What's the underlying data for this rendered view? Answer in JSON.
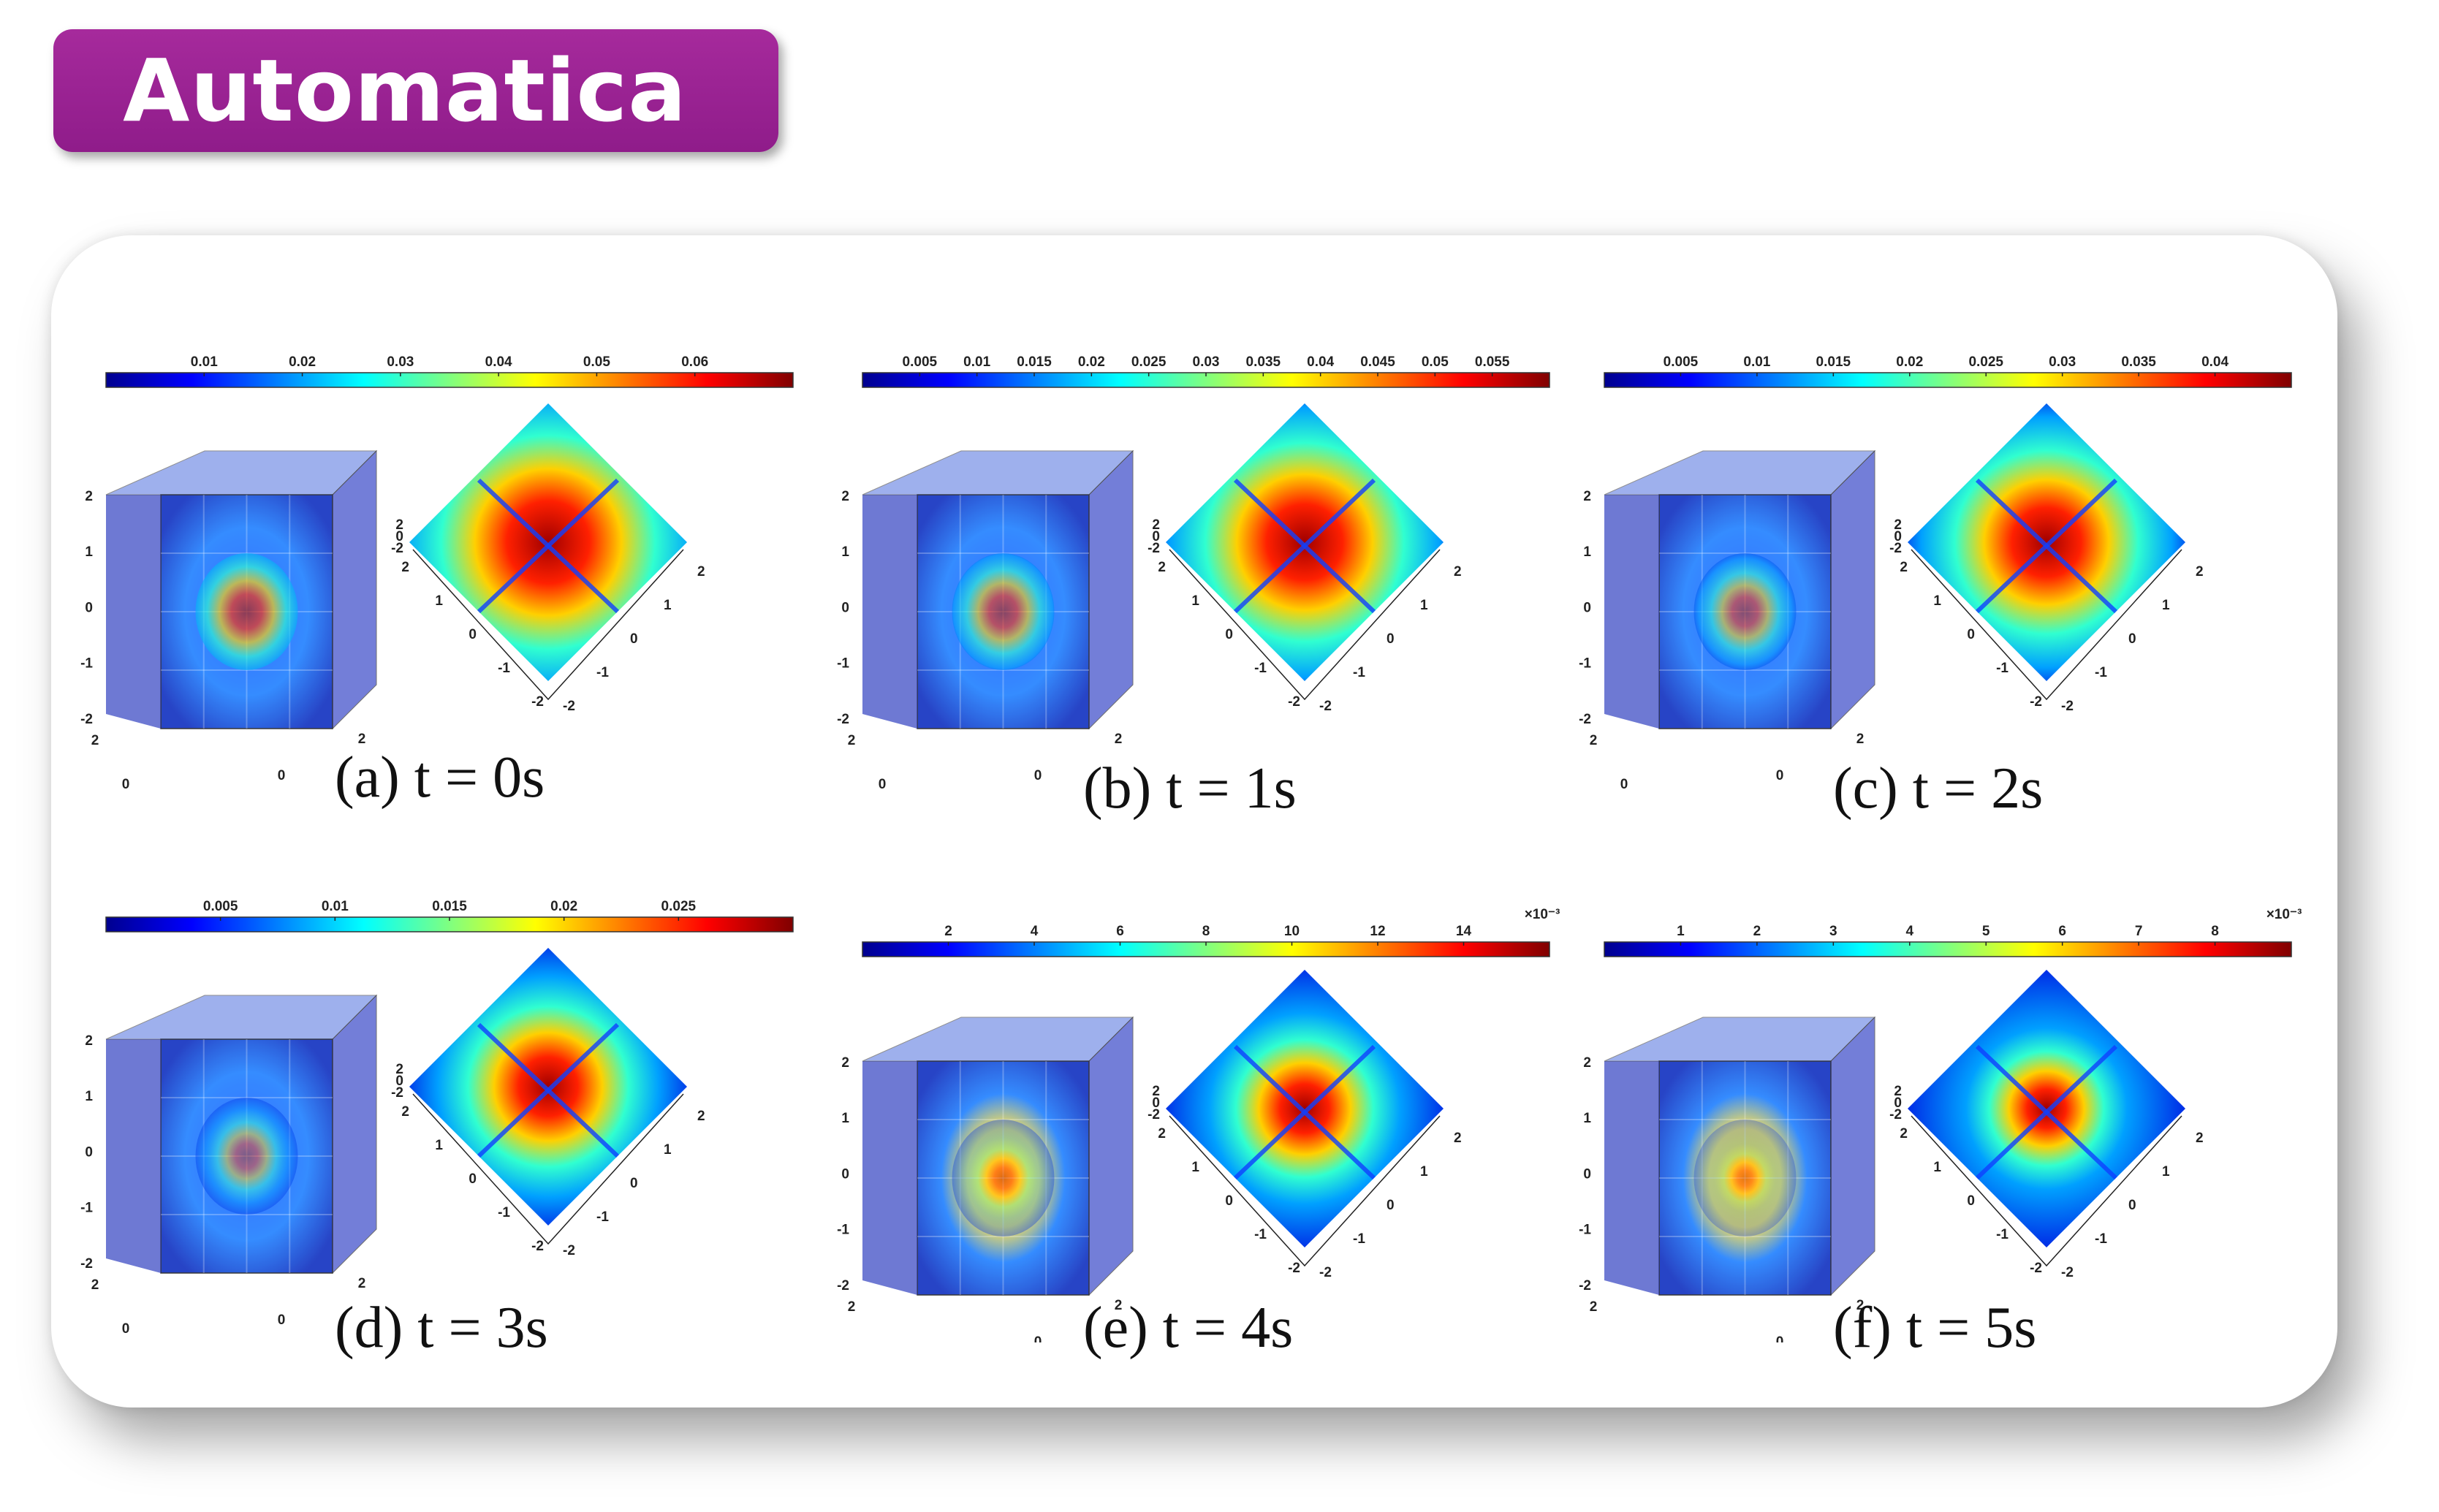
{
  "header": {
    "title": "Automatica"
  },
  "panels": [
    {
      "caption": "(a) t = 0s",
      "ticks": [
        "0.01",
        "0.02",
        "0.03",
        "0.04",
        "0.05",
        "0.06"
      ],
      "exponent": "",
      "intensity": 1.0
    },
    {
      "caption": "(b) t = 1s",
      "ticks": [
        "0.005",
        "0.01",
        "0.015",
        "0.02",
        "0.025",
        "0.03",
        "0.035",
        "0.04",
        "0.045",
        "0.05",
        "0.055"
      ],
      "exponent": "",
      "intensity": 0.9
    },
    {
      "caption": "(c) t = 2s",
      "ticks": [
        "0.005",
        "0.01",
        "0.015",
        "0.02",
        "0.025",
        "0.03",
        "0.035",
        "0.04"
      ],
      "exponent": "",
      "intensity": 0.8
    },
    {
      "caption": "(d) t = 3s",
      "ticks": [
        "0.005",
        "0.01",
        "0.015",
        "0.02",
        "0.025"
      ],
      "exponent": "",
      "intensity": 0.65
    },
    {
      "caption": "(e) t = 4s",
      "ticks": [
        "2",
        "4",
        "6",
        "8",
        "10",
        "12",
        "14"
      ],
      "exponent": "×10⁻³",
      "intensity": 0.5
    },
    {
      "caption": "(f) t = 5s",
      "ticks": [
        "1",
        "2",
        "3",
        "4",
        "5",
        "6",
        "7",
        "8"
      ],
      "exponent": "×10⁻³",
      "intensity": 0.35
    }
  ],
  "axis_ticks": {
    "cube_z": [
      "2",
      "1",
      "0",
      "-1",
      "-2"
    ],
    "cube_front": [
      "2",
      "0",
      "-2"
    ],
    "cube_right": [
      "-2",
      "0",
      "2"
    ],
    "plane_z": [
      "2",
      "0",
      "-2"
    ],
    "plane_left": [
      "2",
      "1",
      "0",
      "-1",
      "-2"
    ],
    "plane_right": [
      "-2",
      "-1",
      "0",
      "1",
      "2"
    ]
  },
  "colors": {
    "badge": "#9b2392",
    "colormap": "jet"
  }
}
